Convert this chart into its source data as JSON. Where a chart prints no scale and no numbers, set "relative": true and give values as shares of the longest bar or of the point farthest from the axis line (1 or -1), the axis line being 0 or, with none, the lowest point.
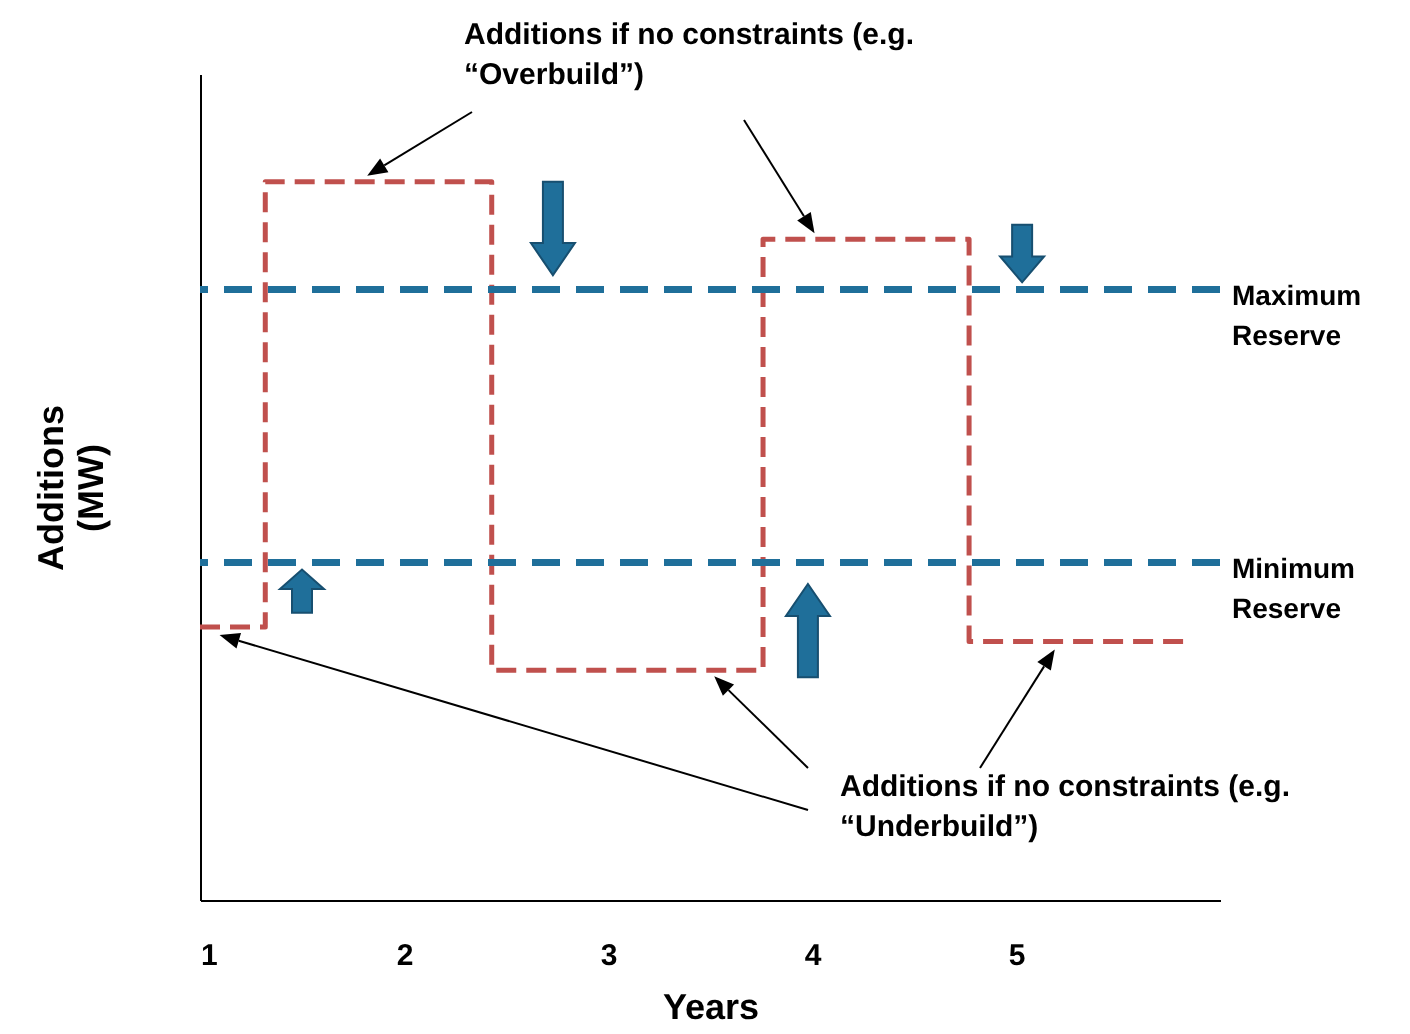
{
  "chart_data": {
    "type": "step",
    "relative": true,
    "xlabel": "Years",
    "ylabel": "Additions (MW)",
    "x": [
      1,
      1.32,
      2.43,
      3.76,
      4.77,
      5.82
    ],
    "xlim": [
      1,
      6
    ],
    "xticks": [
      1,
      2,
      3,
      4,
      5
    ],
    "series": [
      {
        "color": "#c0504d",
        "values": [
          0.38,
          1,
          0.32,
          0.92,
          0.36,
          0.36
        ]
      }
    ],
    "line_style": "dashed",
    "ref_lines": [
      {
        "axis": "y",
        "value": 0.85,
        "label": "Maximum Reserve",
        "color": "#1f6f9a",
        "line_style": "dashed"
      },
      {
        "axis": "y",
        "value": 0.47,
        "label": "Minimum Reserve",
        "color": "#1f6f9a",
        "line_style": "dashed"
      }
    ],
    "annotations": [
      "Additions if no constraints (e.g. “Overbuild”)",
      "Additions if no constraints (e.g. “Underbuild”)"
    ]
  }
}
